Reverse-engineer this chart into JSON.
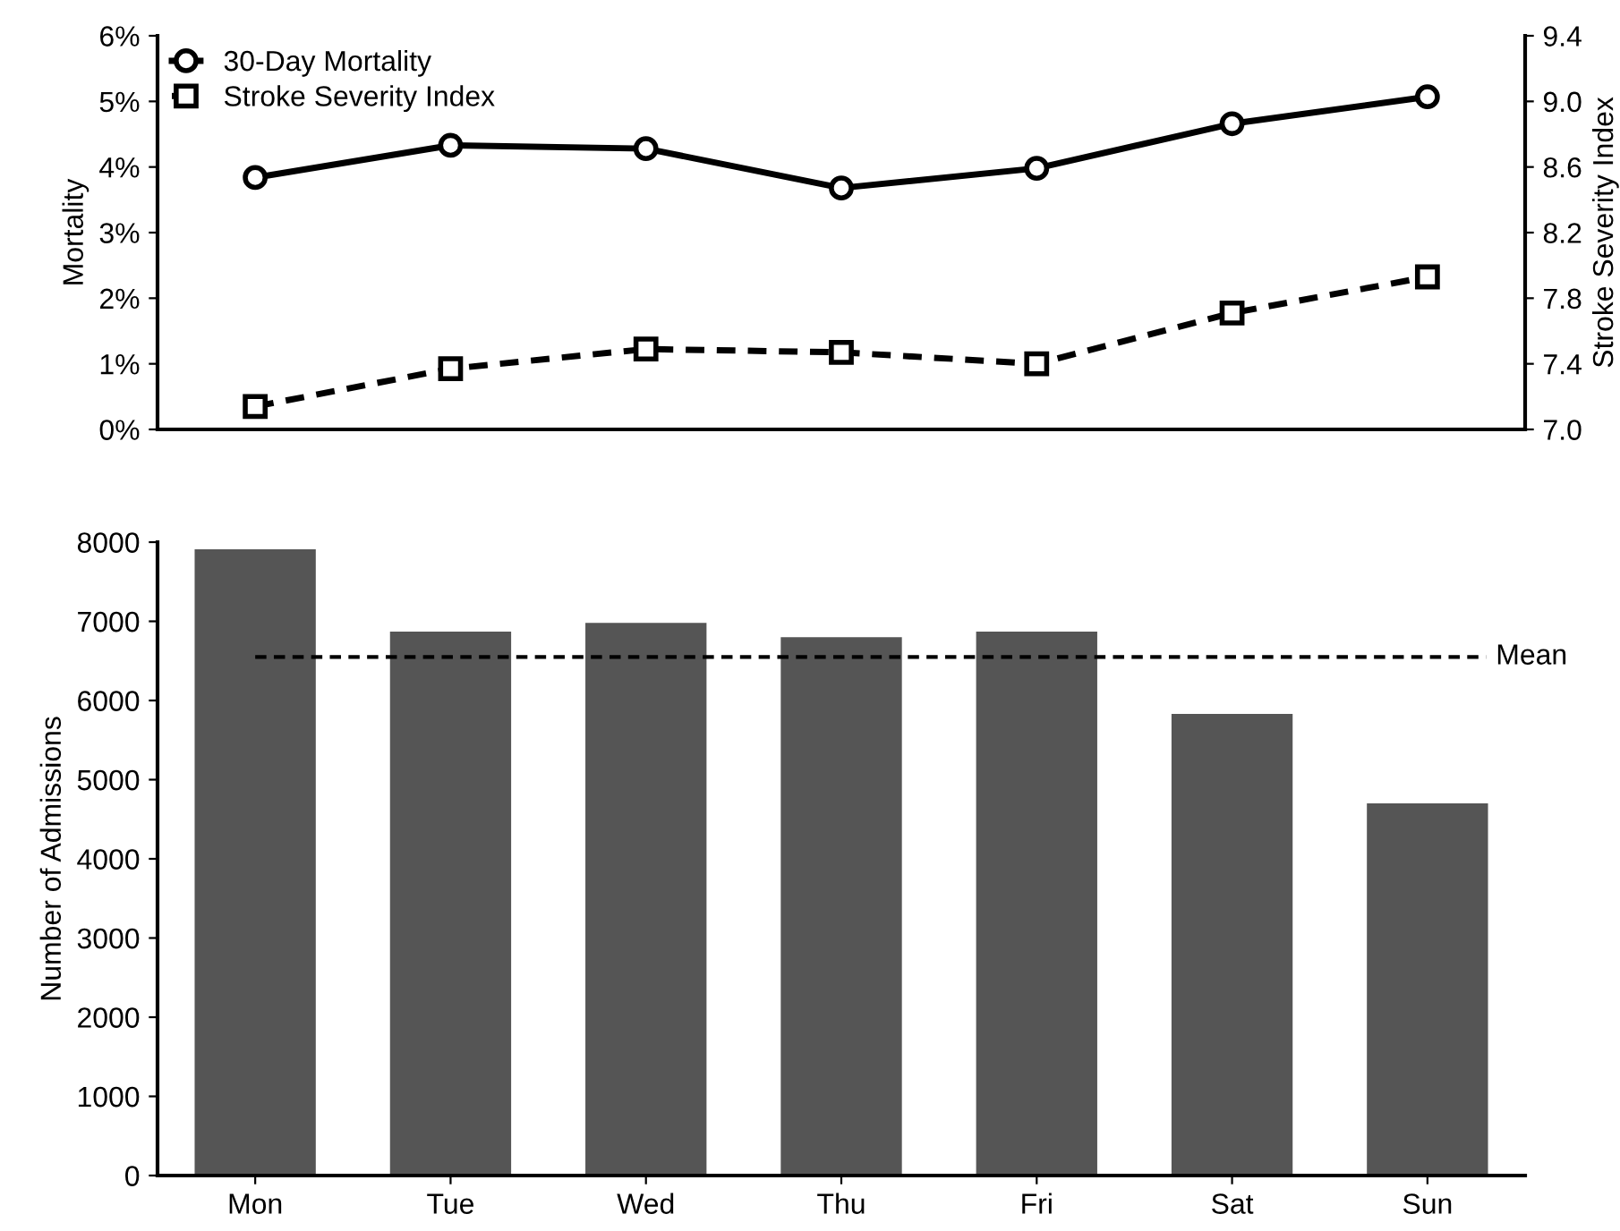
{
  "chart_data": [
    {
      "type": "line",
      "categories": [
        null,
        null,
        null,
        null,
        null,
        null,
        null
      ],
      "ylabel": "Mortality",
      "y2label": "Stroke Severity Index",
      "ylim": [
        0,
        6
      ],
      "yticks": [
        {
          "value": 0,
          "label": "0%"
        },
        {
          "value": 1,
          "label": "1%"
        },
        {
          "value": 2,
          "label": "2%"
        },
        {
          "value": 3,
          "label": "3%"
        },
        {
          "value": 4,
          "label": "4%"
        },
        {
          "value": 5,
          "label": "5%"
        },
        {
          "value": 6,
          "label": "6%"
        }
      ],
      "y2lim": [
        7.0,
        9.4
      ],
      "y2ticks": [
        {
          "value": 7.0,
          "label": "7.0"
        },
        {
          "value": 7.4,
          "label": "7.4"
        },
        {
          "value": 7.8,
          "label": "7.8"
        },
        {
          "value": 8.2,
          "label": "8.2"
        },
        {
          "value": 8.6,
          "label": "8.6"
        },
        {
          "value": 9.0,
          "label": "9.0"
        },
        {
          "value": 9.4,
          "label": "9.4"
        }
      ],
      "tick_labels": "y",
      "legend": "top left",
      "grid": false,
      "series": [
        {
          "name": "30-Day Mortality",
          "color": "#000000",
          "marker": "circle",
          "line_style": "solid",
          "values": [
            3.84,
            4.33,
            4.28,
            3.68,
            3.98,
            4.66,
            5.07
          ]
        },
        {
          "name": "Stroke Severity Index",
          "color": "#000000",
          "marker": "square",
          "line_style": "dashed",
          "axis": "y2",
          "values": [
            7.14,
            7.37,
            7.49,
            7.47,
            7.4,
            7.71,
            7.93
          ]
        }
      ]
    },
    {
      "type": "bar",
      "categories": [
        "Mon",
        "Tue",
        "Wed",
        "Thu",
        "Fri",
        "Sat",
        "Sun"
      ],
      "ylabel": "Number of Admissions",
      "color": "#555555",
      "values": [
        7910,
        6870,
        6980,
        6800,
        6870,
        5830,
        4700
      ],
      "ylim": [
        0,
        8000
      ],
      "yticks": [
        0,
        1000,
        2000,
        3000,
        4000,
        5000,
        6000,
        7000,
        8000
      ],
      "grid": false,
      "legend": false,
      "ref_lines": [
        {
          "axis": "y",
          "value": 6550,
          "label": "Mean",
          "color": "#000000",
          "line_style": "dashed"
        }
      ]
    }
  ]
}
